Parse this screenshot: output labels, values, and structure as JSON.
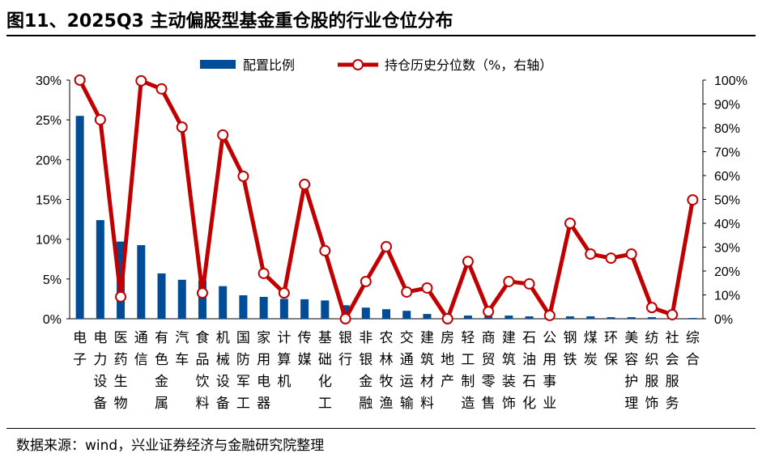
{
  "title": "图11、2025Q3 主动偏股型基金重仓股的行业仓位分布",
  "source": "数据来源：wind，兴业证券经济与金融研究院整理",
  "chart_data": {
    "type": "bar+line",
    "categories": [
      "电子",
      "电力设备",
      "医药生物",
      "通信",
      "有色金属",
      "汽车",
      "食品饮料",
      "机械设备",
      "国防军工",
      "家用电器",
      "计算机",
      "传媒",
      "基础化工",
      "银行",
      "非银金融",
      "农林牧渔",
      "交通运输",
      "建筑材料",
      "房地产",
      "轻工制造",
      "商贸零售",
      "建筑装饰",
      "石油石化",
      "公用事业",
      "钢铁",
      "煤炭",
      "环保",
      "美容护理",
      "纺织服饰",
      "社会服务",
      "综合"
    ],
    "series": [
      {
        "name": "配置比例",
        "type": "bar",
        "axis": "left",
        "color": "#004C97",
        "values": [
          25.5,
          12.4,
          9.7,
          9.25,
          5.7,
          4.9,
          4.8,
          4.1,
          2.95,
          2.75,
          2.5,
          2.45,
          2.3,
          1.7,
          1.4,
          1.2,
          1.0,
          0.6,
          0.1,
          0.4,
          0.3,
          0.4,
          0.3,
          0.1,
          0.3,
          0.3,
          0.2,
          0.2,
          0.2,
          0.1,
          0.1
        ]
      },
      {
        "name": "持仓历史分位数（%，右轴）",
        "type": "line",
        "axis": "right",
        "color": "#C00000",
        "values": [
          100,
          83.4,
          9.2,
          99.7,
          96.3,
          80.3,
          10.8,
          77,
          59.7,
          19,
          10.8,
          56.3,
          28.5,
          0,
          15.6,
          30.2,
          11.2,
          12.9,
          0,
          24,
          3,
          15.6,
          14.6,
          1.4,
          40,
          27.1,
          25.4,
          27.1,
          4.7,
          1.7,
          49.8
        ]
      }
    ],
    "left_axis": {
      "min": 0,
      "max": 30,
      "ticks": [
        "0%",
        "5%",
        "10%",
        "15%",
        "20%",
        "25%",
        "30%"
      ]
    },
    "right_axis": {
      "min": 0,
      "max": 100,
      "ticks": [
        "0%",
        "10%",
        "20%",
        "30%",
        "40%",
        "50%",
        "60%",
        "70%",
        "80%",
        "90%",
        "100%"
      ]
    },
    "legend_position": "top",
    "grid": false
  }
}
